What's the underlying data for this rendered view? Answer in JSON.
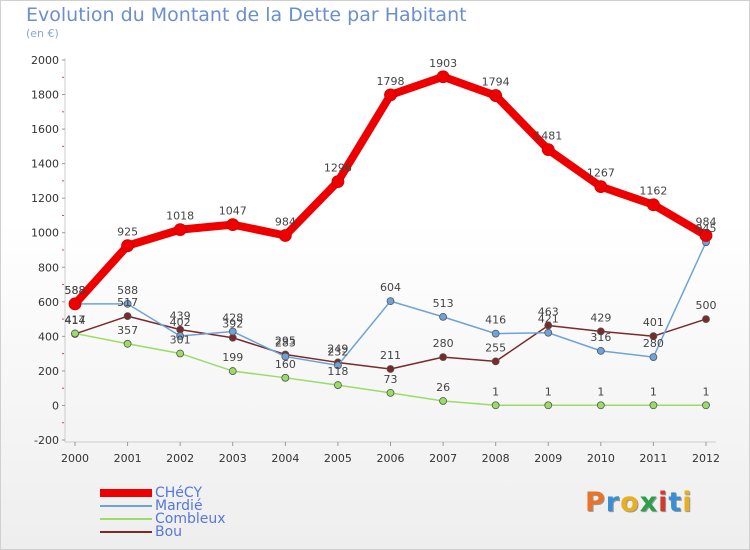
{
  "header": {
    "title": "Evolution du Montant de la Dette par Habitant",
    "subtitle": "(en €)"
  },
  "brand": {
    "text": "Proxiti",
    "letter_colors": [
      "#e8732a",
      "#3a8fd4",
      "#e8b020",
      "#2aa04a",
      "#d43a2a",
      "#3a8fd4",
      "#e8b020"
    ]
  },
  "chart_data": {
    "type": "line",
    "title": "Evolution du Montant de la Dette par Habitant",
    "subtitle": "(en €)",
    "x": [
      "2000",
      "2001",
      "2002",
      "2003",
      "2004",
      "2005",
      "2006",
      "2007",
      "2008",
      "2009",
      "2010",
      "2011",
      "2012"
    ],
    "ylim": [
      -200,
      2000
    ],
    "yticks": [
      -200,
      0,
      200,
      400,
      600,
      800,
      1000,
      1200,
      1400,
      1600,
      1800,
      2000
    ],
    "grid": false,
    "legend_position": "bottom-left",
    "series": [
      {
        "name": "CHéCY",
        "color": "#ee0000",
        "values": [
          588,
          925,
          1018,
          1047,
          984,
          1296,
          1798,
          1903,
          1794,
          1481,
          1267,
          1162,
          984
        ],
        "labels": [
          "588",
          "925",
          "1018",
          "1047",
          "984",
          "1296",
          "1798",
          "1903",
          "1794",
          "1481",
          "1267",
          "1162",
          "984"
        ]
      },
      {
        "name": "Mardié",
        "color": "#6fa3d8",
        "values": [
          588,
          588,
          402,
          428,
          283,
          232,
          604,
          513,
          416,
          421,
          316,
          280,
          945
        ],
        "labels": [
          "588",
          "588",
          "402",
          "428",
          "283",
          "232",
          "604",
          "513",
          "416",
          "421",
          "316",
          "280",
          "945"
        ]
      },
      {
        "name": "Combleux",
        "color": "#99dd66",
        "values": [
          417,
          357,
          301,
          199,
          160,
          118,
          73,
          26,
          1,
          1,
          1,
          1,
          1
        ],
        "labels": [
          "417",
          "357",
          "301",
          "199",
          "160",
          "118",
          "73",
          "26",
          "1",
          "1",
          "1",
          "1",
          "1"
        ]
      },
      {
        "name": "Bou",
        "color": "#7a2a2a",
        "values": [
          414,
          517,
          439,
          392,
          295,
          249,
          211,
          280,
          255,
          463,
          429,
          401,
          500
        ],
        "labels": [
          "414",
          "517",
          "439",
          "392",
          "295",
          "249",
          "211",
          "280",
          "255",
          "463",
          "429",
          "401",
          "500"
        ]
      }
    ]
  }
}
